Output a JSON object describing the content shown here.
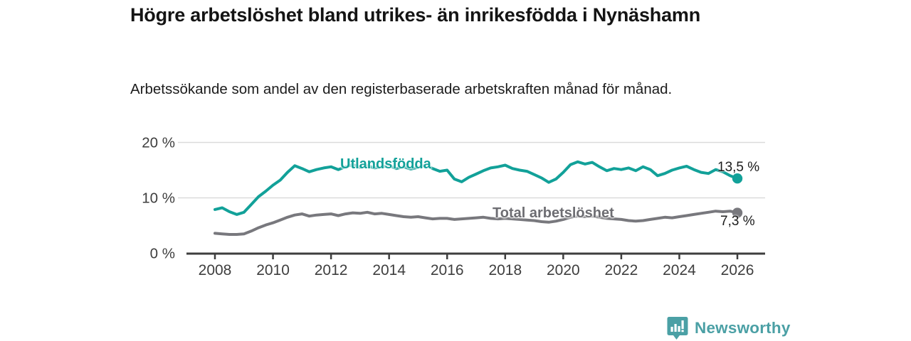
{
  "header": {
    "title": "Högre arbetslöshet bland utrikes- än inrikesfödda i Nynäshamn",
    "subtitle": "Arbetssökande som andel av den registerbaserade arbetskraften månad för månad."
  },
  "chart_data": {
    "type": "line",
    "title": "Högre arbetslöshet bland utrikes- än inrikesfödda i Nynäshamn",
    "subtitle": "Arbetssökande som andel av den registerbaserade arbetskraften månad för månad.",
    "xlabel": "",
    "ylabel": "",
    "unit": "%",
    "ylim": [
      0,
      20
    ],
    "grid": "horizontal",
    "legend_position": "inline-labels",
    "yticks": [
      {
        "value": 0,
        "label": "0 %"
      },
      {
        "value": 10,
        "label": "10 %"
      },
      {
        "value": 20,
        "label": "20 %"
      }
    ],
    "xticks": [
      {
        "value": 2008,
        "label": "2008"
      },
      {
        "value": 2010,
        "label": "2010"
      },
      {
        "value": 2012,
        "label": "2012"
      },
      {
        "value": 2014,
        "label": "2014"
      },
      {
        "value": 2016,
        "label": "2016"
      },
      {
        "value": 2018,
        "label": "2018"
      },
      {
        "value": 2020,
        "label": "2020"
      },
      {
        "value": 2022,
        "label": "2022"
      },
      {
        "value": 2024,
        "label": "2024"
      },
      {
        "value": 2026,
        "label": "2026"
      }
    ],
    "x_start": 2008,
    "x_step_years": 0.25,
    "series": [
      {
        "name": "Utlandsfödda",
        "color": "#12A199",
        "end_label": "13,5 %",
        "end_value": 13.5,
        "values": [
          7.9,
          8.2,
          7.5,
          7.0,
          7.4,
          8.8,
          10.2,
          11.2,
          12.3,
          13.2,
          14.6,
          15.8,
          15.3,
          14.7,
          15.1,
          15.4,
          15.6,
          15.1,
          15.6,
          16.0,
          15.5,
          15.8,
          15.4,
          15.6,
          15.8,
          15.3,
          15.6,
          15.2,
          15.5,
          15.9,
          15.3,
          14.8,
          15.0,
          13.4,
          12.9,
          13.7,
          14.3,
          14.9,
          15.4,
          15.6,
          15.9,
          15.3,
          15.0,
          14.8,
          14.2,
          13.6,
          12.8,
          13.4,
          14.6,
          16.0,
          16.5,
          16.1,
          16.4,
          15.6,
          14.9,
          15.3,
          15.1,
          15.4,
          14.9,
          15.6,
          15.1,
          14.0,
          14.4,
          15.0,
          15.4,
          15.7,
          15.1,
          14.6,
          14.4,
          15.1,
          14.7,
          14.0,
          13.5
        ]
      },
      {
        "name": "Total arbetslöshet",
        "color": "#78787D",
        "end_label": "7,3 %",
        "end_value": 7.3,
        "values": [
          3.6,
          3.5,
          3.4,
          3.4,
          3.5,
          4.0,
          4.6,
          5.1,
          5.5,
          6.0,
          6.5,
          6.9,
          7.1,
          6.7,
          6.9,
          7.0,
          7.1,
          6.8,
          7.1,
          7.3,
          7.2,
          7.4,
          7.1,
          7.2,
          7.0,
          6.8,
          6.6,
          6.5,
          6.6,
          6.4,
          6.2,
          6.3,
          6.3,
          6.1,
          6.2,
          6.3,
          6.4,
          6.5,
          6.3,
          6.2,
          6.3,
          6.2,
          6.1,
          6.0,
          5.9,
          5.7,
          5.6,
          5.8,
          6.1,
          6.5,
          6.7,
          6.6,
          6.7,
          6.5,
          6.3,
          6.2,
          6.1,
          5.9,
          5.8,
          5.9,
          6.1,
          6.3,
          6.5,
          6.4,
          6.6,
          6.8,
          7.0,
          7.2,
          7.4,
          7.6,
          7.5,
          7.6,
          7.3
        ]
      }
    ]
  },
  "footer": {
    "brand": "Newsworthy",
    "logo_icon": "bar-chart-speech-bubble-icon"
  },
  "colors": {
    "accent_teal": "#12A199",
    "series_gray": "#78787D",
    "brand_teal": "#4BA0A5",
    "axis": "#3E3E3E",
    "gridline": "#DBDBDB",
    "text_dark": "#141414"
  }
}
